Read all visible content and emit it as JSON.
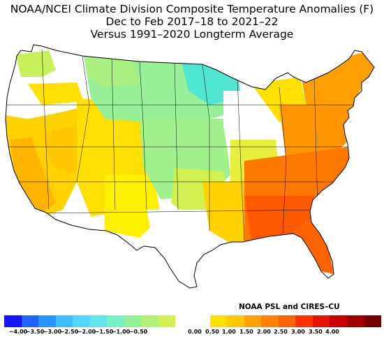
{
  "title": {
    "line1": "NOAA/NCEI Climate Division Composite Temperature Anomalies (F)",
    "line2": "Dec to Feb 2017–18 to 2021–22",
    "line3": "Versus 1991–2020 Longterm Average"
  },
  "credit": "NOAA PSL and CIRES–CU",
  "map": {
    "type": "choropleth",
    "region": "Contiguous United States climate divisions",
    "units": "°F",
    "regional_anomalies": [
      {
        "region": "Pacific Northwest",
        "range": [
          0.0,
          0.5
        ]
      },
      {
        "region": "California",
        "range": [
          1.0,
          1.5
        ]
      },
      {
        "region": "Nevada and Utah",
        "range": [
          0.5,
          1.0
        ]
      },
      {
        "region": "Northern Plains and Upper Midwest",
        "range": [
          -1.5,
          -0.5
        ]
      },
      {
        "region": "Minnesota",
        "range": [
          -2.0,
          -1.5
        ]
      },
      {
        "region": "Central Plains",
        "range": [
          -0.5,
          0.0
        ]
      },
      {
        "region": "Great Lakes",
        "range": [
          0.0,
          0.5
        ]
      },
      {
        "region": "Northeast",
        "range": [
          1.5,
          2.5
        ]
      },
      {
        "region": "Southeast and Florida",
        "range": [
          2.5,
          3.0
        ]
      },
      {
        "region": "Texas and Southern Plains",
        "range": [
          0.0,
          1.0
        ]
      }
    ]
  },
  "legend": {
    "colors": [
      "#1414ff",
      "#1e64ff",
      "#2896ff",
      "#3cbeff",
      "#50d7ff",
      "#64e6e6",
      "#78f0c8",
      "#96f096",
      "#b4f078",
      "#d2f050",
      "#ffffff",
      "#ffffff",
      "#ffe000",
      "#ffc800",
      "#ffa000",
      "#ff8200",
      "#ff6400",
      "#ff3200",
      "#e61400",
      "#c80000",
      "#a00000",
      "#780000"
    ],
    "labels": [
      "−4.00",
      "−3.50",
      "−3.00",
      "−2.50",
      "−2.00",
      "−1.50",
      "−1.00",
      "−0.50",
      "0.00",
      "0.50",
      "1.00",
      "1.50",
      "2.00",
      "2.50",
      "3.00",
      "3.50",
      "4.00"
    ]
  }
}
